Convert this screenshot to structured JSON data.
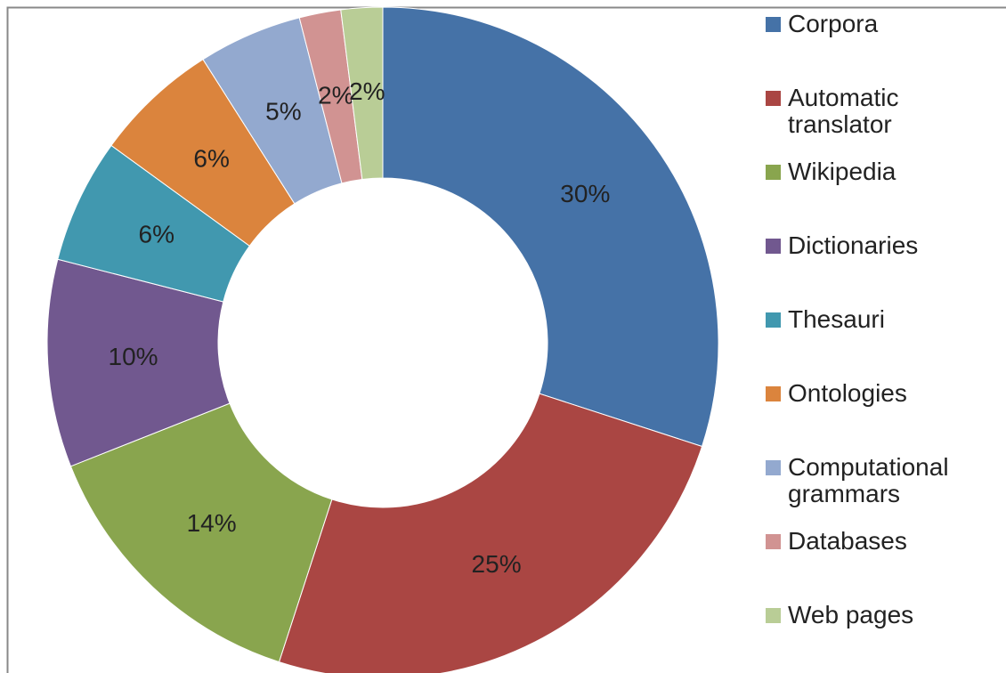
{
  "chart_data": {
    "type": "donut",
    "categories": [
      "Corpora",
      "Automatic translator",
      "Wikipedia",
      "Dictionaries",
      "Thesauri",
      "Ontologies",
      "Computational grammars",
      "Databases",
      "Web pages"
    ],
    "values": [
      30,
      25,
      14,
      10,
      6,
      6,
      5,
      2,
      2
    ],
    "value_labels": [
      "30%",
      "25%",
      "14%",
      "10%",
      "6%",
      "6%",
      "5%",
      "2%",
      "2%"
    ],
    "colors": [
      "#4572a7",
      "#aa4643",
      "#89a54e",
      "#71588f",
      "#4198af",
      "#db843d",
      "#93a9cf",
      "#d19392",
      "#b9cd96"
    ],
    "legend": "right"
  }
}
